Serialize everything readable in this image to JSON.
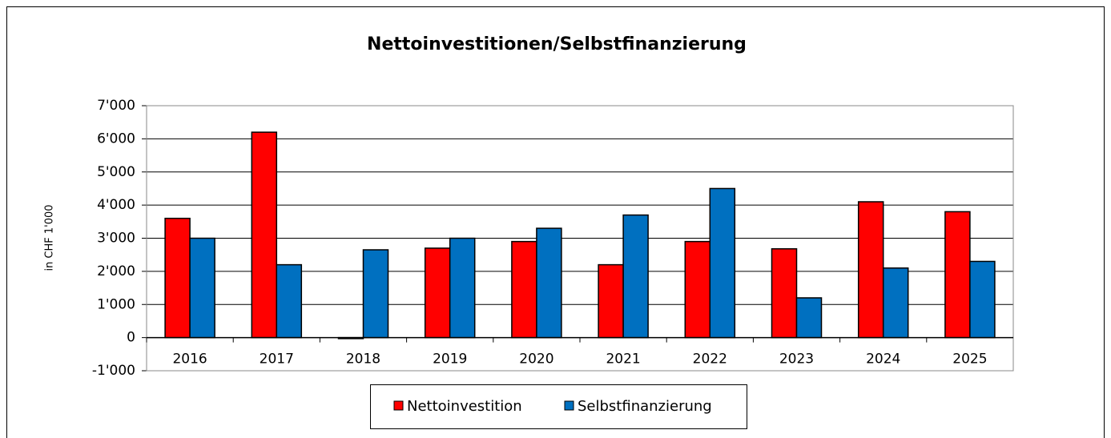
{
  "chart_data": {
    "type": "bar",
    "title": "Nettoinvestitionen/Selbstfinanzierung",
    "y_label": "in CHF 1'000",
    "categories": [
      "2016",
      "2017",
      "2018",
      "2019",
      "2020",
      "2021",
      "2022",
      "2023",
      "2024",
      "2025"
    ],
    "series": [
      {
        "name": "Nettoinvestition",
        "color": "#ff0000",
        "values": [
          3600,
          6200,
          -30,
          2700,
          2900,
          2200,
          2900,
          2680,
          4100,
          3800
        ]
      },
      {
        "name": "Selbstfinanzierung",
        "color": "#0070c0",
        "values": [
          3000,
          2200,
          2650,
          3000,
          3300,
          3700,
          4500,
          1200,
          2100,
          2300
        ]
      }
    ],
    "ylim": [
      -1000,
      7000
    ],
    "yticks": [
      {
        "value": -1000,
        "label": "-1'000"
      },
      0,
      {
        "value": 1000,
        "label": "1'000"
      },
      {
        "value": 2000,
        "label": "2'000"
      },
      {
        "value": 3000,
        "label": "3'000"
      },
      {
        "value": 4000,
        "label": "4'000"
      },
      {
        "value": 5000,
        "label": "5'000"
      },
      {
        "value": 6000,
        "label": "6'000"
      },
      {
        "value": 7000,
        "label": "7'000"
      }
    ],
    "grid": true,
    "legend": "bottom"
  }
}
